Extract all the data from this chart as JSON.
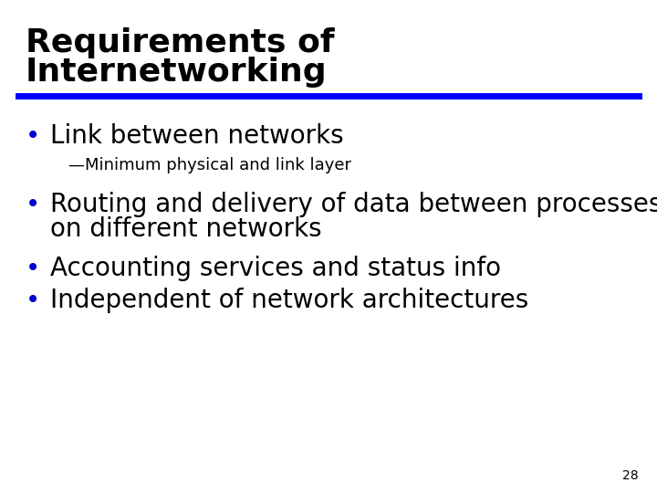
{
  "title_line1": "Requirements of",
  "title_line2": "Internetworking",
  "title_color": "#000000",
  "title_fontsize": 26,
  "separator_color": "#0000FF",
  "separator_lw": 5,
  "bullet_color": "#0000CD",
  "bullet_char": "•",
  "bullet_fontsize": 20,
  "sub_fontsize": 13,
  "bullets": [
    {
      "text": "Link between networks",
      "level": 0
    },
    {
      "text": "—Minimum physical and link layer",
      "level": 1
    },
    {
      "text": "Routing and delivery of data between processes",
      "level": 0
    },
    {
      "text": "on different networks",
      "level": 2
    },
    {
      "text": "Accounting services and status info",
      "level": 0
    },
    {
      "text": "Independent of network architectures",
      "level": 0
    }
  ],
  "background_color": "#FFFFFF",
  "page_number": "28",
  "page_number_fontsize": 10,
  "page_number_color": "#000000",
  "fig_width": 7.2,
  "fig_height": 5.4,
  "dpi": 100
}
